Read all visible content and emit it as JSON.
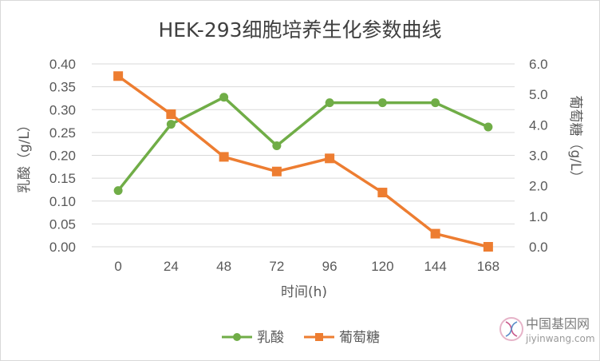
{
  "chart_data": {
    "type": "line",
    "title": "HEK-293细胞培养生化参数曲线",
    "xlabel": "时间(h)",
    "ylabel_left": "乳酸（g/L）",
    "ylabel_right": "葡萄糖（g/L）",
    "categories": [
      "0",
      "24",
      "48",
      "72",
      "96",
      "120",
      "144",
      "168"
    ],
    "y_left": {
      "min": 0,
      "max": 0.4,
      "step": 0.05,
      "ticks": [
        "0.00",
        "0.05",
        "0.10",
        "0.15",
        "0.20",
        "0.25",
        "0.30",
        "0.35",
        "0.40"
      ]
    },
    "y_right": {
      "min": 0,
      "max": 6,
      "step": 1,
      "ticks": [
        "0.0",
        "1.0",
        "2.0",
        "3.0",
        "4.0",
        "5.0",
        "6.0"
      ]
    },
    "grid": true,
    "legend_position": "bottom",
    "series": [
      {
        "name": "乳酸",
        "axis": "left",
        "marker": "circle",
        "color": "#70ad47",
        "values": [
          0.123,
          0.268,
          0.327,
          0.221,
          0.315,
          0.315,
          0.315,
          0.262
        ]
      },
      {
        "name": "葡萄糖",
        "axis": "right",
        "marker": "square",
        "color": "#ed7d31",
        "values": [
          5.6,
          4.35,
          2.95,
          2.47,
          2.9,
          1.78,
          0.43,
          0.0
        ]
      }
    ]
  },
  "watermark": {
    "name_cn": "中国基因网",
    "site": "jiyinwang.com"
  }
}
